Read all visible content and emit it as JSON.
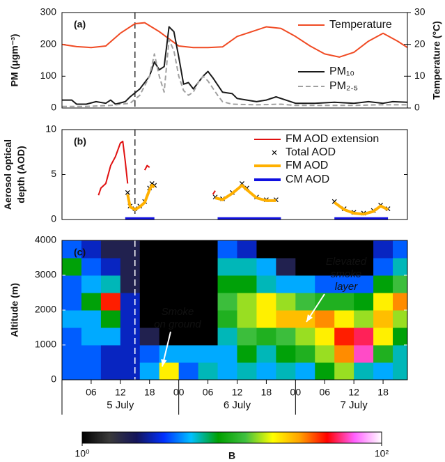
{
  "chart_data": [
    {
      "type": "line",
      "panel_label": "(a)",
      "ylabel": [
        "PM (μgm⁻³)"
      ],
      "y2label": "Temperature (°C)",
      "xlim": [
        0,
        71
      ],
      "ylim": [
        0,
        300
      ],
      "yticks": [
        0,
        100,
        200,
        300
      ],
      "y2lim": [
        0,
        30
      ],
      "y2ticks": [
        0,
        10,
        20,
        30
      ],
      "vline": 15,
      "legend": "upper right",
      "series": [
        {
          "name": "Temperature",
          "color": "#f04a23",
          "axis": "y2",
          "x": [
            0,
            3,
            6,
            9,
            12,
            15,
            17,
            20,
            24,
            27,
            30,
            33,
            36,
            39,
            42,
            45,
            48,
            51,
            54,
            57,
            60,
            63,
            66,
            69,
            71
          ],
          "values": [
            20,
            19.3,
            19,
            19.5,
            23.5,
            26.5,
            26.8,
            24,
            19.5,
            19,
            19,
            19.2,
            22.5,
            24,
            25.5,
            25,
            22.5,
            19.5,
            17,
            16,
            17.5,
            21,
            23.5,
            21,
            19
          ]
        },
        {
          "name": "PM₁₀",
          "color": "#1a1a1a",
          "x": [
            0,
            2,
            3,
            5,
            7,
            9,
            10,
            11,
            13,
            14,
            16,
            18,
            19,
            20,
            21,
            22,
            23,
            24,
            25,
            26,
            27,
            28,
            29,
            30,
            31,
            33,
            35,
            36,
            38,
            40,
            42,
            44,
            46,
            48,
            52,
            56,
            60,
            63,
            66,
            68,
            71
          ],
          "values": [
            25,
            25,
            12,
            12,
            20,
            15,
            25,
            12,
            20,
            35,
            60,
            100,
            145,
            120,
            130,
            255,
            240,
            160,
            75,
            80,
            60,
            80,
            100,
            115,
            95,
            50,
            45,
            30,
            25,
            20,
            25,
            35,
            25,
            15,
            15,
            18,
            15,
            20,
            15,
            20,
            18
          ]
        },
        {
          "name": "PM₂.₅",
          "color": "#a0a0a0",
          "dash": true,
          "x": [
            0,
            5,
            10,
            14,
            16,
            18,
            19,
            20,
            21,
            22,
            23,
            24,
            25,
            26,
            27,
            28,
            29,
            30,
            32,
            33,
            35,
            40,
            45,
            48,
            55,
            60,
            65,
            71
          ],
          "values": [
            5,
            5,
            8,
            15,
            40,
            100,
            170,
            100,
            50,
            215,
            180,
            100,
            55,
            40,
            50,
            80,
            100,
            85,
            40,
            20,
            12,
            10,
            12,
            8,
            8,
            8,
            10,
            10
          ]
        }
      ]
    },
    {
      "type": "line",
      "panel_label": "(b)",
      "ylabel": [
        "Aerosol optical",
        "depth (AOD)"
      ],
      "xlim": [
        0,
        71
      ],
      "ylim": [
        0,
        10
      ],
      "yticks": [
        0,
        5,
        10
      ],
      "vline": 15,
      "legend": "upper right",
      "series": [
        {
          "name": "FM AOD extension",
          "color": "#e01010",
          "x": [
            7.5,
            8,
            9,
            10,
            11,
            12,
            12.5,
            13,
            13.5,
            15,
            17,
            17.5,
            18,
            25,
            31,
            31.5
          ],
          "values": [
            2.7,
            3.5,
            4,
            6,
            7,
            8.5,
            8.7,
            6.5,
            4,
            null,
            5.5,
            6,
            5.8,
            null,
            2.8,
            3.2
          ]
        },
        {
          "name": "Total AOD",
          "color": "#000000",
          "marker": "x",
          "x": [
            13.5,
            14,
            15,
            16,
            17,
            18,
            18.5,
            19,
            31.5,
            33,
            35,
            37,
            38,
            40,
            42,
            44,
            56,
            58,
            60,
            62,
            64,
            65.5,
            67
          ],
          "values": [
            3,
            1.5,
            1.2,
            1.5,
            2,
            3.5,
            4,
            3.8,
            2.5,
            2.3,
            3,
            4,
            3.5,
            2.5,
            2.2,
            2.2,
            2,
            1.2,
            0.8,
            0.7,
            1,
            1.6,
            1.2
          ]
        },
        {
          "name": "FM AOD",
          "color": "#ffb000",
          "width": 4,
          "x": [
            13.5,
            14,
            15,
            16,
            17,
            18,
            18.5,
            19,
            25,
            31.5,
            33,
            35,
            37,
            38,
            40,
            42,
            44,
            50,
            56,
            58,
            60,
            62,
            64,
            65.5,
            67
          ],
          "values": [
            2.8,
            1.4,
            1.1,
            1.4,
            1.9,
            3.3,
            3.8,
            3.6,
            null,
            2.4,
            2.2,
            2.9,
            3.8,
            3.3,
            2.4,
            2.1,
            2.1,
            null,
            1.9,
            1.1,
            0.7,
            0.6,
            0.9,
            1.5,
            1.1
          ]
        },
        {
          "name": "CM AOD",
          "color": "#1010e0",
          "width": 4,
          "x": [
            13,
            19,
            25,
            32,
            45,
            50,
            56,
            67
          ],
          "values": [
            0.1,
            0.1,
            null,
            0.1,
            0.1,
            null,
            0.1,
            0.1
          ]
        }
      ]
    },
    {
      "type": "heatmap",
      "panel_label": "(c)",
      "ylabel": [
        "Altitude (m)"
      ],
      "xlim": [
        0,
        71
      ],
      "ylim": [
        0,
        4000
      ],
      "yticks": [
        0,
        1000,
        2000,
        3000,
        4000
      ],
      "vline": 15,
      "xticks": [
        {
          "value": 6,
          "label": "06"
        },
        {
          "value": 12,
          "label": "12"
        },
        {
          "value": 18,
          "label": "18"
        },
        {
          "value": 24,
          "label": "00"
        },
        {
          "value": 30,
          "label": "06"
        },
        {
          "value": 36,
          "label": "12"
        },
        {
          "value": 42,
          "label": "18"
        },
        {
          "value": 48,
          "label": "00"
        },
        {
          "value": 54,
          "label": "06"
        },
        {
          "value": 60,
          "label": "12"
        },
        {
          "value": 66,
          "label": "18"
        }
      ],
      "day_labels": [
        {
          "value": 12,
          "label": "5 July"
        },
        {
          "value": 36,
          "label": "6 July"
        },
        {
          "value": 60,
          "label": "7 July"
        }
      ],
      "x_edges": [
        0,
        4,
        8,
        12,
        16,
        20,
        24,
        28,
        32,
        36,
        40,
        44,
        48,
        52,
        56,
        60,
        64,
        68,
        71
      ],
      "y_edges": [
        0,
        500,
        1000,
        1500,
        2000,
        2500,
        3000,
        3500,
        4000
      ],
      "z": [
        [
          4,
          4,
          3,
          3,
          5,
          20,
          4,
          6,
          5,
          6,
          5,
          6,
          5,
          8,
          15,
          6,
          5,
          6
        ],
        [
          4,
          4,
          3,
          3,
          4,
          5,
          5,
          5,
          5,
          8,
          6,
          8,
          10,
          15,
          30,
          60,
          10,
          6
        ],
        [
          4,
          5,
          5,
          3,
          2,
          1,
          1,
          1,
          6,
          12,
          10,
          12,
          15,
          20,
          40,
          50,
          20,
          8
        ],
        [
          5,
          5,
          8,
          3,
          1,
          1,
          1,
          1,
          10,
          15,
          20,
          25,
          25,
          30,
          20,
          15,
          25,
          15
        ],
        [
          4,
          8,
          40,
          3,
          1,
          1,
          1,
          1,
          12,
          15,
          20,
          15,
          12,
          10,
          10,
          8,
          20,
          30
        ],
        [
          4,
          5,
          6,
          2,
          1,
          1,
          1,
          1,
          8,
          8,
          6,
          5,
          5,
          4,
          4,
          4,
          8,
          12
        ],
        [
          8,
          4,
          3,
          2,
          1,
          1,
          1,
          1,
          6,
          6,
          5,
          2,
          1,
          1,
          1,
          1,
          4,
          6
        ],
        [
          4,
          3,
          2,
          2,
          1,
          1,
          1,
          1,
          4,
          3,
          1,
          1,
          1,
          1,
          1,
          1,
          3,
          4
        ]
      ],
      "annotations": [
        [
          "Smoke",
          "on ground"
        ],
        [
          "Elevated",
          "smoke",
          "layer"
        ]
      ],
      "colorbar": {
        "label": "B",
        "log": true,
        "lim": [
          1,
          100
        ],
        "ticks": [
          {
            "value": 1,
            "label": "10⁰"
          },
          {
            "value": 100,
            "label": "10²"
          }
        ],
        "colors": [
          "#000000",
          "#3a3a3a",
          "#14145a",
          "#0030ff",
          "#00c0ff",
          "#00a000",
          "#40c040",
          "#ffff00",
          "#ffa000",
          "#ff0000",
          "#ff60ff",
          "#ffffff"
        ]
      }
    }
  ]
}
